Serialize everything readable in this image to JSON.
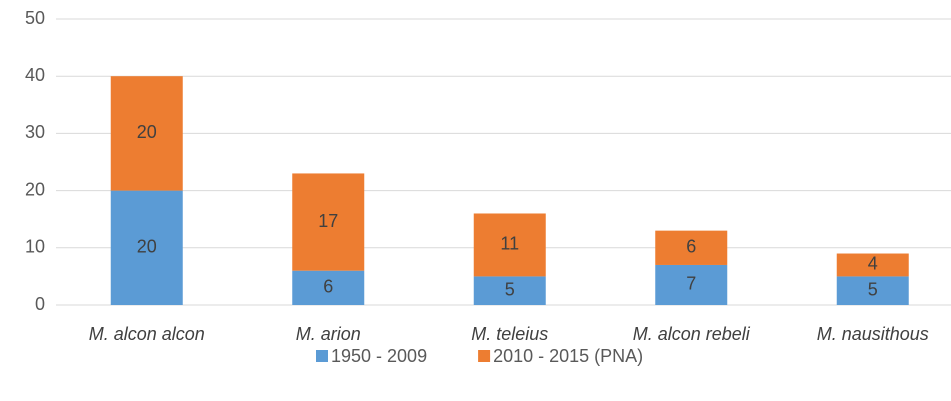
{
  "chart_data": {
    "type": "stacked_bar",
    "categories": [
      "M. alcon alcon",
      "M. arion",
      "M. teleius",
      "M. alcon rebeli",
      "M. nausithous"
    ],
    "series": [
      {
        "name": "1950 - 2009",
        "color": "#5b9bd5",
        "values": [
          20,
          6,
          5,
          7,
          5
        ]
      },
      {
        "name": "2010 - 2015 (PNA)",
        "color": "#ed7d31",
        "values": [
          20,
          17,
          11,
          6,
          4
        ]
      }
    ],
    "ylim": [
      0,
      50
    ],
    "yticks": [
      0,
      10,
      20,
      30,
      40,
      50
    ],
    "grid": true,
    "legend": "bottom"
  }
}
